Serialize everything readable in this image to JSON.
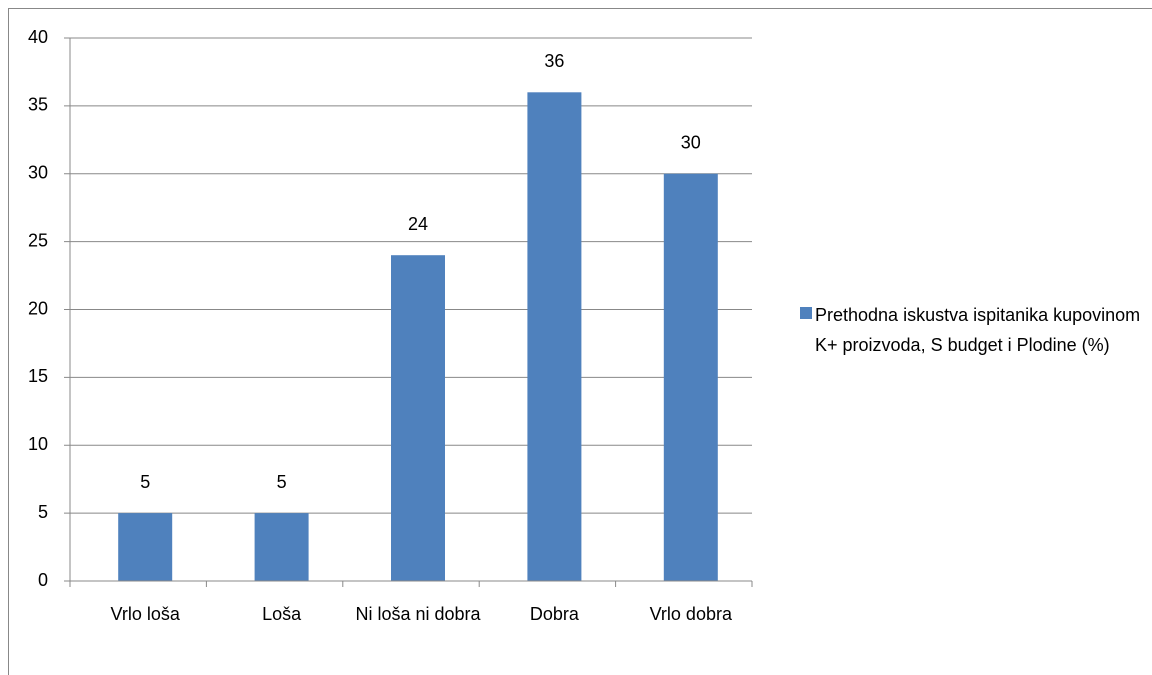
{
  "chart_data": {
    "type": "bar",
    "categories": [
      "Vrlo loša",
      "Loša",
      "Ni loša ni dobra",
      "Dobra",
      "Vrlo dobra"
    ],
    "series": [
      {
        "name": "Prethodna iskustva ispitanika kupovinom K+ proizvoda, S budget i Plodine (%)",
        "color": "#4f81bd",
        "values": [
          5,
          5,
          24,
          36,
          30
        ]
      }
    ],
    "ylim": [
      0,
      40
    ],
    "yticks": [
      0,
      5,
      10,
      15,
      20,
      25,
      30,
      35,
      40
    ],
    "grid": true,
    "legend": "right"
  }
}
